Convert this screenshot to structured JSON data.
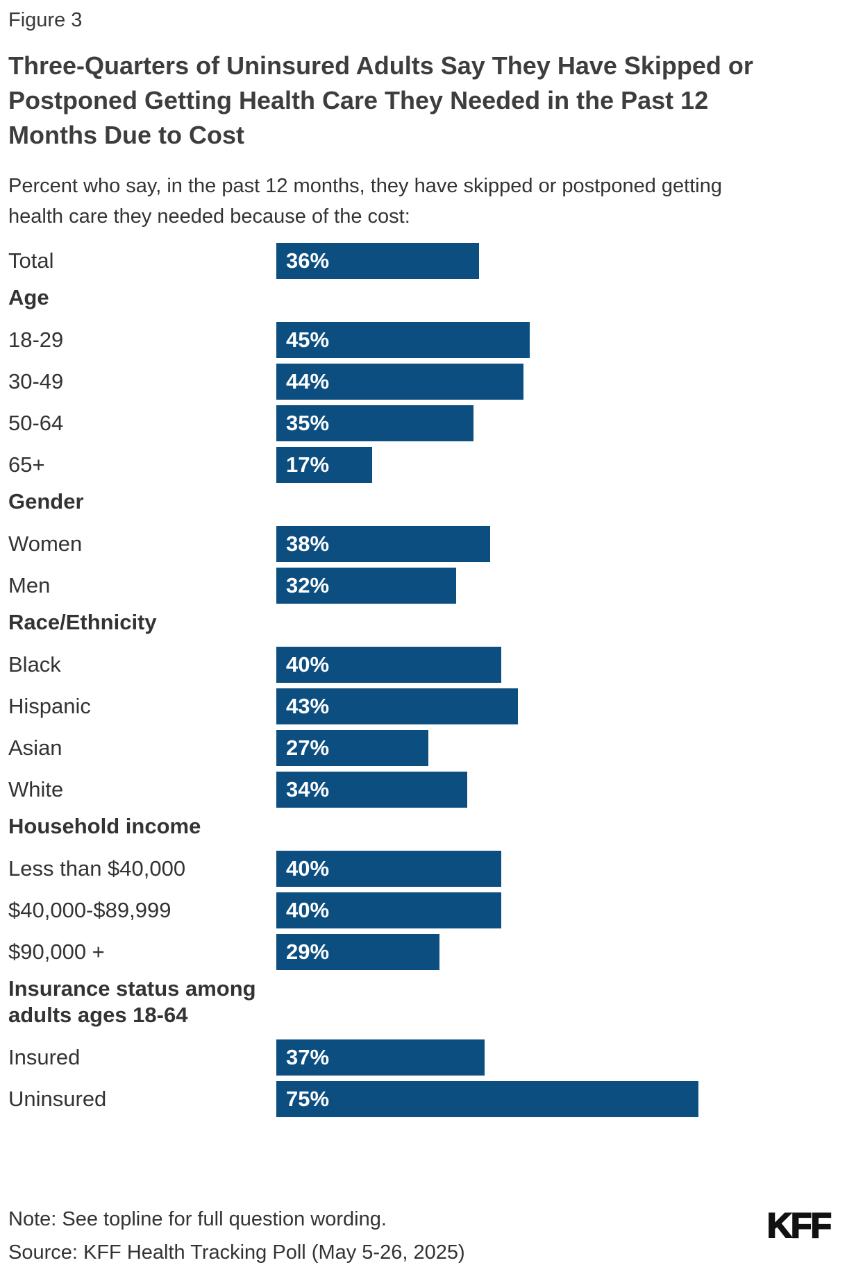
{
  "figure_label": "Figure 3",
  "title_lines": [
    "Three-Quarters of Uninsured Adults Say They Have Skipped or",
    "Postponed Getting Health Care They Needed in the Past 12",
    "Months Due to Cost"
  ],
  "subtitle_lines": [
    "Percent who say, in the past 12 months, they have skipped or postponed getting",
    "health care they needed because of the cost:"
  ],
  "chart_data": {
    "type": "bar",
    "orientation": "horizontal",
    "value_unit": "percent",
    "xlim": [
      0,
      100
    ],
    "grid": false,
    "legend": false,
    "bar_color": "#0d4e81",
    "value_label_color": "#ffffff",
    "value_label_format": "{v}%",
    "sections": [
      {
        "header": "",
        "rows": [
          {
            "label": "Total",
            "value": 36
          }
        ]
      },
      {
        "header": "Age",
        "rows": [
          {
            "label": "18-29",
            "value": 45
          },
          {
            "label": "30-49",
            "value": 44
          },
          {
            "label": "50-64",
            "value": 35
          },
          {
            "label": "65+",
            "value": 17
          }
        ]
      },
      {
        "header": "Gender",
        "rows": [
          {
            "label": "Women",
            "value": 38
          },
          {
            "label": "Men",
            "value": 32
          }
        ]
      },
      {
        "header": "Race/Ethnicity",
        "rows": [
          {
            "label": "Black",
            "value": 40
          },
          {
            "label": "Hispanic",
            "value": 43
          },
          {
            "label": "Asian",
            "value": 27
          },
          {
            "label": "White",
            "value": 34
          }
        ]
      },
      {
        "header": "Household income",
        "rows": [
          {
            "label": "Less than $40,000",
            "value": 40
          },
          {
            "label": "$40,000-$89,999",
            "value": 40
          },
          {
            "label": "$90,000 +",
            "value": 29
          }
        ]
      },
      {
        "header": "Insurance status among adults ages 18-64",
        "rows": [
          {
            "label": "Insured",
            "value": 37
          },
          {
            "label": "Uninsured",
            "value": 75
          }
        ]
      }
    ]
  },
  "footer": {
    "note": "Note: See topline for full question wording.",
    "source": "Source: KFF Health Tracking Poll (May 5-26, 2025)",
    "logo_text": "KFF"
  }
}
